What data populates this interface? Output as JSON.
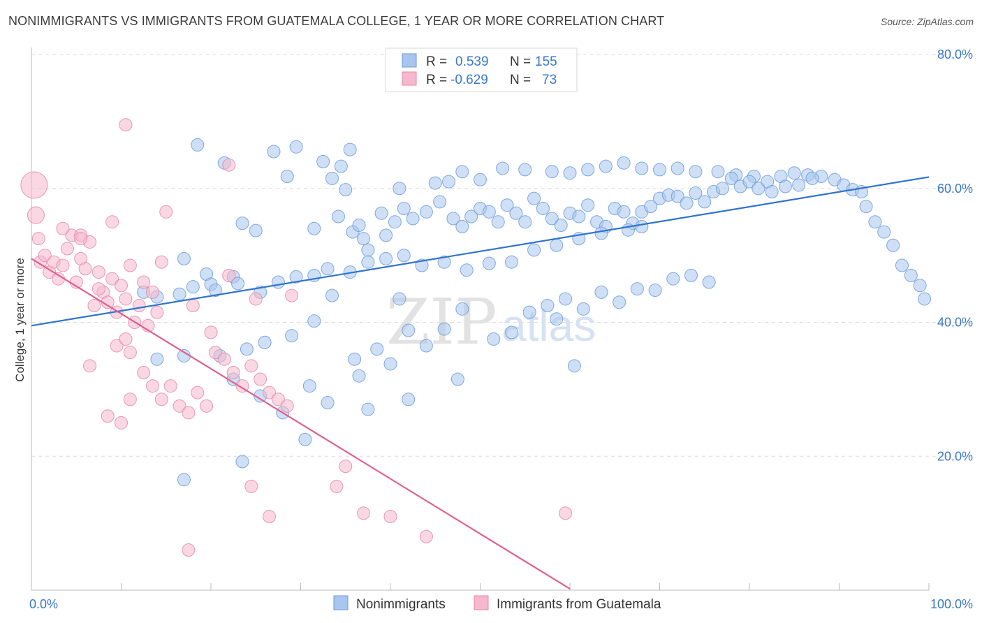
{
  "title": "NONIMMIGRANTS VS IMMIGRANTS FROM GUATEMALA COLLEGE, 1 YEAR OR MORE CORRELATION CHART",
  "source": "Source: ZipAtlas.com",
  "watermark": {
    "left": "ZIP",
    "right": "atlas"
  },
  "legend_box": {
    "rows": [
      {
        "r_label": "R =",
        "r_value": "0.539",
        "n_label": "N =",
        "n_value": "155",
        "color": "#a8c6ef",
        "edge": "#6a9ad8"
      },
      {
        "r_label": "R =",
        "r_value": "-0.629",
        "n_label": "N =",
        "n_value": "73",
        "color": "#f5b8cc",
        "edge": "#e487a5"
      }
    ]
  },
  "bottom_legend": [
    {
      "label": "Nonimmigrants",
      "color": "#a8c6ef"
    },
    {
      "label": "Immigrants from Guatemala",
      "color": "#f5b8cc"
    }
  ],
  "chart_data": {
    "type": "scatter",
    "title": "NONIMMIGRANTS VS IMMIGRANTS FROM GUATEMALA COLLEGE, 1 YEAR OR MORE CORRELATION CHART",
    "xlabel": "",
    "ylabel": "College, 1 year or more",
    "xlim": [
      0,
      100
    ],
    "ylim": [
      0,
      80
    ],
    "x_tick_labels": [
      "0.0%",
      "100.0%"
    ],
    "y_tick_labels": [
      "20.0%",
      "40.0%",
      "60.0%",
      "80.0%"
    ],
    "y_ticks": [
      20,
      40,
      60,
      80
    ],
    "grid": "horizontal dashed",
    "legend_position": "top-center",
    "series": [
      {
        "name": "Nonimmigrants",
        "color": "#6a9ad8",
        "fill": "#a8c6ef",
        "trend": {
          "x": [
            0,
            100
          ],
          "y": [
            39.5,
            61.7
          ]
        },
        "points": [
          [
            18.5,
            66.5
          ],
          [
            21.5,
            63.8
          ],
          [
            27.0,
            65.5
          ],
          [
            28.5,
            61.8
          ],
          [
            29.5,
            66.2
          ],
          [
            32.5,
            64.0
          ],
          [
            33.5,
            61.5
          ],
          [
            35.5,
            65.8
          ],
          [
            34.5,
            63.3
          ],
          [
            35.0,
            59.8
          ],
          [
            31.5,
            54.0
          ],
          [
            25.0,
            53.7
          ],
          [
            23.5,
            54.8
          ],
          [
            17.0,
            49.5
          ],
          [
            19.5,
            47.2
          ],
          [
            22.5,
            46.8
          ],
          [
            20.0,
            45.7
          ],
          [
            34.2,
            55.8
          ],
          [
            35.8,
            53.5
          ],
          [
            36.5,
            54.5
          ],
          [
            37.0,
            52.5
          ],
          [
            37.5,
            50.8
          ],
          [
            39.0,
            56.3
          ],
          [
            41.0,
            60.0
          ],
          [
            45.0,
            60.8
          ],
          [
            46.5,
            61.0
          ],
          [
            50.0,
            61.3
          ],
          [
            48.0,
            62.5
          ],
          [
            52.5,
            63.0
          ],
          [
            55.0,
            62.8
          ],
          [
            58.0,
            62.5
          ],
          [
            60.0,
            62.3
          ],
          [
            62.0,
            62.8
          ],
          [
            64.0,
            63.3
          ],
          [
            66.0,
            63.8
          ],
          [
            68.0,
            63.0
          ],
          [
            70.0,
            62.8
          ],
          [
            72.0,
            63.0
          ],
          [
            74.0,
            62.5
          ],
          [
            76.5,
            62.5
          ],
          [
            78.5,
            62.0
          ],
          [
            80.5,
            61.8
          ],
          [
            82.0,
            61.0
          ],
          [
            83.5,
            61.8
          ],
          [
            85.0,
            62.3
          ],
          [
            86.5,
            62.0
          ],
          [
            88.0,
            61.8
          ],
          [
            89.5,
            61.3
          ],
          [
            90.5,
            60.5
          ],
          [
            91.5,
            59.8
          ],
          [
            92.5,
            59.5
          ],
          [
            93.0,
            57.3
          ],
          [
            94.0,
            55.0
          ],
          [
            95.0,
            53.5
          ],
          [
            96.0,
            51.5
          ],
          [
            97.0,
            48.5
          ],
          [
            98.0,
            47.0
          ],
          [
            99.0,
            45.5
          ],
          [
            99.5,
            43.5
          ],
          [
            39.5,
            53.0
          ],
          [
            40.5,
            55.0
          ],
          [
            41.5,
            57.0
          ],
          [
            42.5,
            55.5
          ],
          [
            44.0,
            56.5
          ],
          [
            45.5,
            58.0
          ],
          [
            47.0,
            55.5
          ],
          [
            48.0,
            54.3
          ],
          [
            49.0,
            55.8
          ],
          [
            50.0,
            57.0
          ],
          [
            51.0,
            56.5
          ],
          [
            52.0,
            55.0
          ],
          [
            53.0,
            57.5
          ],
          [
            54.0,
            56.3
          ],
          [
            55.0,
            55.0
          ],
          [
            56.0,
            58.5
          ],
          [
            57.0,
            57.0
          ],
          [
            58.0,
            55.5
          ],
          [
            59.0,
            54.5
          ],
          [
            60.0,
            56.3
          ],
          [
            61.0,
            55.8
          ],
          [
            62.0,
            57.5
          ],
          [
            63.0,
            55.0
          ],
          [
            64.0,
            54.3
          ],
          [
            65.0,
            57.0
          ],
          [
            66.0,
            56.5
          ],
          [
            67.0,
            54.8
          ],
          [
            68.0,
            56.5
          ],
          [
            69.0,
            57.3
          ],
          [
            70.0,
            58.5
          ],
          [
            71.0,
            59.0
          ],
          [
            72.0,
            58.8
          ],
          [
            73.0,
            57.8
          ],
          [
            74.0,
            59.3
          ],
          [
            75.0,
            58.0
          ],
          [
            76.0,
            59.5
          ],
          [
            77.0,
            60.0
          ],
          [
            78.0,
            61.5
          ],
          [
            79.0,
            60.3
          ],
          [
            80.0,
            61.0
          ],
          [
            81.0,
            60.0
          ],
          [
            82.5,
            59.5
          ],
          [
            84.0,
            60.3
          ],
          [
            85.5,
            60.5
          ],
          [
            87.0,
            61.5
          ],
          [
            14.0,
            43.8
          ],
          [
            16.5,
            44.2
          ],
          [
            18.0,
            45.3
          ],
          [
            20.5,
            44.8
          ],
          [
            23.0,
            45.8
          ],
          [
            25.5,
            44.5
          ],
          [
            27.5,
            46.0
          ],
          [
            29.5,
            46.8
          ],
          [
            31.5,
            47.0
          ],
          [
            33.0,
            48.0
          ],
          [
            35.5,
            47.5
          ],
          [
            37.5,
            49.0
          ],
          [
            39.5,
            49.5
          ],
          [
            41.5,
            50.0
          ],
          [
            43.5,
            48.5
          ],
          [
            46.0,
            49.0
          ],
          [
            48.5,
            47.8
          ],
          [
            51.0,
            48.8
          ],
          [
            53.5,
            49.0
          ],
          [
            56.0,
            50.8
          ],
          [
            58.5,
            51.5
          ],
          [
            61.0,
            52.5
          ],
          [
            63.5,
            53.3
          ],
          [
            66.5,
            53.8
          ],
          [
            68.0,
            54.3
          ],
          [
            12.5,
            44.5
          ],
          [
            17.0,
            35.0
          ],
          [
            21.0,
            35.0
          ],
          [
            24.0,
            36.0
          ],
          [
            26.0,
            37.0
          ],
          [
            29.0,
            38.0
          ],
          [
            31.5,
            40.2
          ],
          [
            33.5,
            44.0
          ],
          [
            36.0,
            34.5
          ],
          [
            38.5,
            36.0
          ],
          [
            40.0,
            33.8
          ],
          [
            42.0,
            38.8
          ],
          [
            44.0,
            36.5
          ],
          [
            46.0,
            39.0
          ],
          [
            48.0,
            42.0
          ],
          [
            51.5,
            37.5
          ],
          [
            53.5,
            38.5
          ],
          [
            55.5,
            41.5
          ],
          [
            57.5,
            42.5
          ],
          [
            59.5,
            43.5
          ],
          [
            61.5,
            42.0
          ],
          [
            63.5,
            44.5
          ],
          [
            65.5,
            43.0
          ],
          [
            67.5,
            45.0
          ],
          [
            69.5,
            44.8
          ],
          [
            71.5,
            46.5
          ],
          [
            73.5,
            47.0
          ],
          [
            75.5,
            46.0
          ],
          [
            14.0,
            34.5
          ],
          [
            22.5,
            31.5
          ],
          [
            25.5,
            29.0
          ],
          [
            28.0,
            26.5
          ],
          [
            31.0,
            30.5
          ],
          [
            33.0,
            28.0
          ],
          [
            36.5,
            32.0
          ],
          [
            30.5,
            22.5
          ],
          [
            23.5,
            19.2
          ],
          [
            17.0,
            16.5
          ],
          [
            42.0,
            28.5
          ],
          [
            47.5,
            31.5
          ],
          [
            37.5,
            27.0
          ],
          [
            41.0,
            43.5
          ],
          [
            58.5,
            40.5
          ],
          [
            60.5,
            33.5
          ]
        ]
      },
      {
        "name": "Immigrants from Guatemala",
        "color": "#e487a5",
        "fill": "#f5b8cc",
        "trend": {
          "x": [
            0,
            60
          ],
          "y": [
            49.5,
            0.2
          ]
        },
        "points": [
          [
            0.3,
            60.5
          ],
          [
            0.5,
            56.0
          ],
          [
            0.8,
            52.5
          ],
          [
            1.0,
            49.0
          ],
          [
            1.5,
            50.0
          ],
          [
            2.0,
            47.5
          ],
          [
            2.5,
            49.0
          ],
          [
            3.0,
            46.5
          ],
          [
            3.5,
            48.5
          ],
          [
            4.0,
            51.0
          ],
          [
            4.5,
            53.0
          ],
          [
            5.0,
            46.0
          ],
          [
            5.5,
            49.5
          ],
          [
            6.0,
            48.0
          ],
          [
            6.5,
            52.0
          ],
          [
            7.0,
            42.5
          ],
          [
            7.5,
            47.5
          ],
          [
            8.0,
            44.5
          ],
          [
            8.5,
            43.0
          ],
          [
            9.0,
            46.5
          ],
          [
            9.5,
            41.5
          ],
          [
            10.0,
            45.5
          ],
          [
            10.5,
            43.5
          ],
          [
            11.0,
            48.5
          ],
          [
            11.5,
            40.0
          ],
          [
            12.0,
            42.5
          ],
          [
            12.5,
            46.0
          ],
          [
            13.0,
            39.5
          ],
          [
            13.5,
            44.5
          ],
          [
            14.0,
            41.5
          ],
          [
            3.5,
            54.0
          ],
          [
            5.5,
            53.0
          ],
          [
            7.5,
            45.0
          ],
          [
            9.5,
            36.5
          ],
          [
            10.5,
            37.5
          ],
          [
            11.0,
            35.5
          ],
          [
            12.5,
            32.5
          ],
          [
            13.5,
            30.5
          ],
          [
            14.5,
            28.5
          ],
          [
            15.5,
            30.5
          ],
          [
            16.5,
            27.5
          ],
          [
            17.5,
            26.5
          ],
          [
            18.5,
            29.5
          ],
          [
            19.5,
            27.5
          ],
          [
            20.5,
            35.5
          ],
          [
            21.5,
            34.5
          ],
          [
            22.5,
            32.5
          ],
          [
            23.5,
            30.5
          ],
          [
            24.5,
            33.5
          ],
          [
            25.5,
            31.5
          ],
          [
            26.5,
            29.5
          ],
          [
            27.5,
            28.5
          ],
          [
            28.5,
            27.5
          ],
          [
            6.5,
            33.5
          ],
          [
            8.5,
            26.0
          ],
          [
            10.0,
            25.0
          ],
          [
            11.0,
            28.5
          ],
          [
            14.5,
            49.0
          ],
          [
            18.0,
            42.5
          ],
          [
            20.0,
            38.5
          ],
          [
            22.0,
            47.0
          ],
          [
            25.0,
            43.5
          ],
          [
            29.0,
            44.0
          ],
          [
            10.5,
            69.5
          ],
          [
            22.0,
            63.5
          ],
          [
            15.0,
            56.5
          ],
          [
            9.0,
            55.0
          ],
          [
            5.5,
            52.5
          ],
          [
            24.5,
            15.5
          ],
          [
            26.5,
            11.0
          ],
          [
            34.0,
            15.5
          ],
          [
            37.0,
            11.5
          ],
          [
            40.0,
            11.0
          ],
          [
            44.0,
            8.0
          ],
          [
            17.5,
            6.0
          ],
          [
            35.0,
            18.5
          ],
          [
            59.5,
            11.5
          ]
        ]
      }
    ]
  }
}
